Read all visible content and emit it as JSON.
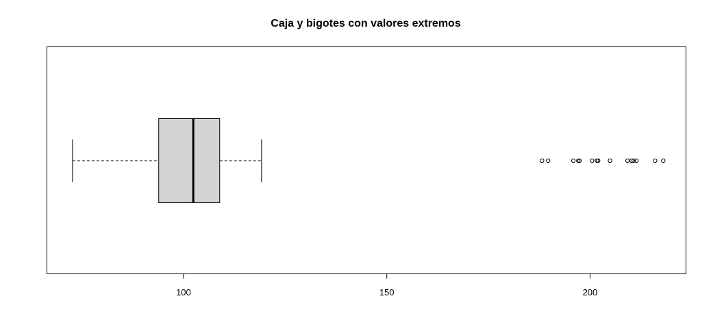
{
  "chart_data": {
    "type": "boxplot",
    "orientation": "horizontal",
    "title": "Caja y bigotes con valores extremos",
    "xlabel": "",
    "ylabel": "",
    "xlim": [
      66.4,
      223.6
    ],
    "x_ticks": [
      100,
      150,
      200
    ],
    "grid": false,
    "box": {
      "whisker_low": 72.7,
      "q1": 93.9,
      "median": 102.4,
      "q3": 108.9,
      "whisker_high": 119.2
    },
    "outliers": [
      188.2,
      189.7,
      195.9,
      197.1,
      197.4,
      200.5,
      201.7,
      202.0,
      204.9,
      209.2,
      210.2,
      210.7,
      211.4,
      216.0,
      218.0
    ],
    "colors": {
      "box_fill": "#d3d3d3",
      "stroke": "#000000"
    }
  }
}
